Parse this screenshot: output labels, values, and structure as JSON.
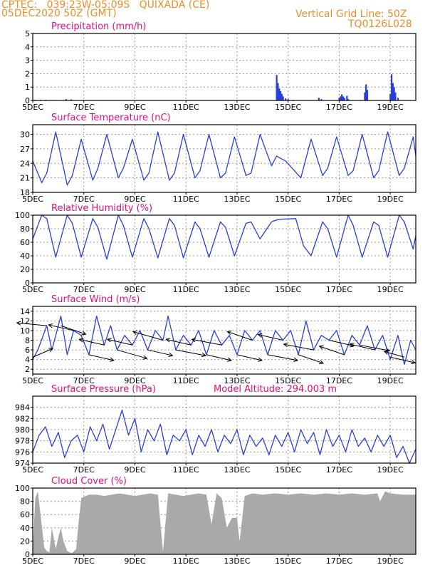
{
  "header": {
    "line1": "CPTEC:   039:23W-05:09S   QUIXADA (CE)",
    "line2": "05DEC2020 50Z (GMT)",
    "grid_note": "Vertical Grid Line: 50Z",
    "code": "TQ0126L028",
    "model_altitude": "Model Altitude: 294.003 m"
  },
  "colors": {
    "header": "#e8902a",
    "title": "#e0107a",
    "series": "#2a3fd8",
    "cloud": "#a9a9a9",
    "arrow": "#000000"
  },
  "chart_data": [
    {
      "type": "bar",
      "title": "Precipitation (mm/h)",
      "ylim": [
        0,
        5
      ],
      "yticks": [
        0,
        1,
        2,
        3,
        4,
        5
      ],
      "xlim": [
        0,
        15
      ],
      "xticks": [
        0,
        2,
        4,
        6,
        8,
        10,
        12,
        14
      ],
      "xticklabels": [
        "5DEC",
        "7DEC",
        "9DEC",
        "11DEC",
        "13DEC",
        "15DEC",
        "17DEC",
        "19DEC"
      ],
      "grid": true,
      "x": [
        0.1,
        0.3,
        0.5,
        1.3,
        1.5,
        9.55,
        9.6,
        9.65,
        9.7,
        9.75,
        9.8,
        9.9,
        10.0,
        10.2,
        11.2,
        11.3,
        12.0,
        12.05,
        12.1,
        12.15,
        12.2,
        12.3,
        12.35,
        13.0,
        13.05,
        13.1,
        14.0,
        14.05,
        14.1,
        14.15,
        14.2,
        14.3
      ],
      "values": [
        0.05,
        0.05,
        0.05,
        0.1,
        0.08,
        1.9,
        1.3,
        0.9,
        0.7,
        0.5,
        0.3,
        0.15,
        0.1,
        0.05,
        0.2,
        0.1,
        0.2,
        0.3,
        0.45,
        0.3,
        0.2,
        0.35,
        0.1,
        0.6,
        1.2,
        0.8,
        0.5,
        1.95,
        1.3,
        1.0,
        0.6,
        0.2
      ]
    },
    {
      "type": "line",
      "title": "Surface Temperature (nC)",
      "ylim": [
        18,
        32
      ],
      "yticks": [
        18,
        21,
        24,
        27,
        30
      ],
      "xlim": [
        0,
        15
      ],
      "xticks": [
        0,
        2,
        4,
        6,
        8,
        10,
        12,
        14
      ],
      "xticklabels": [
        "5DEC",
        "7DEC",
        "9DEC",
        "11DEC",
        "13DEC",
        "15DEC",
        "17DEC",
        "19DEC"
      ],
      "grid": true,
      "x": [
        0,
        0.35,
        0.55,
        0.9,
        1.35,
        1.55,
        1.9,
        2.35,
        2.55,
        2.9,
        3.35,
        3.55,
        3.9,
        4.35,
        4.55,
        4.9,
        5.35,
        5.55,
        5.9,
        6.35,
        6.55,
        6.9,
        7.35,
        7.55,
        7.9,
        8.35,
        8.55,
        8.9,
        9.35,
        9.55,
        9.9,
        10.5,
        10.9,
        11.35,
        11.55,
        11.9,
        12.35,
        12.55,
        12.9,
        13.35,
        13.55,
        13.9,
        14.35,
        14.55,
        14.9,
        15
      ],
      "values": [
        24.5,
        20,
        22,
        30.5,
        19.5,
        21.5,
        29,
        20.5,
        23,
        30,
        21,
        23,
        29,
        20.5,
        22,
        30.5,
        20.5,
        22,
        30,
        21,
        22.5,
        30,
        21,
        22,
        29.5,
        21.5,
        22,
        30,
        23.5,
        25.5,
        24.5,
        21,
        29,
        21.5,
        23,
        29.5,
        21.5,
        22.5,
        30,
        21,
        22.5,
        30.5,
        21.5,
        23,
        29.5,
        25.5
      ]
    },
    {
      "type": "line",
      "title": "Relative Humidity (%)",
      "ylim": [
        0,
        100
      ],
      "yticks": [
        0,
        20,
        40,
        60,
        80,
        100
      ],
      "xlim": [
        0,
        15
      ],
      "xticks": [
        0,
        2,
        4,
        6,
        8,
        10,
        12,
        14
      ],
      "xticklabels": [
        "5DEC",
        "7DEC",
        "9DEC",
        "11DEC",
        "13DEC",
        "15DEC",
        "17DEC",
        "19DEC"
      ],
      "grid": true,
      "x": [
        0,
        0.35,
        0.55,
        0.9,
        1.35,
        1.55,
        1.9,
        2.35,
        2.55,
        2.9,
        3.35,
        3.55,
        3.9,
        4.35,
        4.55,
        4.9,
        5.35,
        5.55,
        5.9,
        6.35,
        6.55,
        6.9,
        7.35,
        7.55,
        7.9,
        8.35,
        8.55,
        8.9,
        9.35,
        9.55,
        9.7,
        10.3,
        10.6,
        10.9,
        11.35,
        11.55,
        11.9,
        12.35,
        12.55,
        12.9,
        13.35,
        13.55,
        13.9,
        14.35,
        14.55,
        14.9,
        15
      ],
      "values": [
        65,
        100,
        95,
        38,
        100,
        88,
        38,
        95,
        82,
        35,
        100,
        85,
        38,
        95,
        80,
        37,
        95,
        85,
        37,
        90,
        80,
        38,
        90,
        82,
        40,
        88,
        90,
        65,
        90,
        93,
        94,
        95,
        55,
        40,
        90,
        80,
        38,
        100,
        85,
        38,
        90,
        85,
        38,
        100,
        90,
        50,
        70
      ]
    },
    {
      "type": "line",
      "title": "Surface Wind (m/s)",
      "ylim": [
        1,
        15
      ],
      "yticks": [
        2,
        4,
        6,
        8,
        10,
        12,
        14
      ],
      "xlim": [
        0,
        15
      ],
      "xticks": [
        0,
        2,
        4,
        6,
        8,
        10,
        12,
        14
      ],
      "xticklabels": [
        "5DEC",
        "7DEC",
        "9DEC",
        "11DEC",
        "13DEC",
        "15DEC",
        "17DEC",
        "19DEC"
      ],
      "grid": true,
      "x": [
        0,
        0.2,
        0.55,
        0.75,
        1.1,
        1.35,
        1.6,
        1.9,
        2.2,
        2.5,
        2.8,
        3.05,
        3.3,
        3.6,
        3.9,
        4.2,
        4.5,
        4.8,
        5.1,
        5.3,
        5.6,
        5.9,
        6.2,
        6.5,
        6.8,
        7.1,
        7.4,
        7.7,
        8.0,
        8.3,
        8.6,
        8.9,
        9.2,
        9.5,
        9.8,
        10.1,
        10.4,
        10.7,
        11.0,
        11.3,
        11.6,
        11.9,
        12.2,
        12.5,
        12.8,
        13.1,
        13.4,
        13.7,
        14.0,
        14.3,
        14.55,
        14.8,
        15
      ],
      "values": [
        4,
        6,
        11,
        6,
        13,
        5,
        10,
        9,
        5,
        13,
        7,
        11,
        6,
        9,
        7,
        10,
        6,
        10,
        8,
        13,
        6,
        9,
        7,
        10,
        5,
        10,
        7,
        9,
        5,
        10,
        8,
        10,
        5,
        10,
        8,
        10,
        5,
        12,
        6,
        9,
        8,
        10,
        5,
        9,
        7,
        11,
        6,
        9,
        4,
        9,
        3,
        8,
        6
      ]
    },
    {
      "type": "line",
      "title": "Surface Pressure (hPa)",
      "ylim": [
        974,
        986
      ],
      "yticks": [
        974,
        976,
        978,
        980,
        982,
        984
      ],
      "xlim": [
        0,
        15
      ],
      "xticks": [
        0,
        2,
        4,
        6,
        8,
        10,
        12,
        14
      ],
      "xticklabels": [
        "5DEC",
        "7DEC",
        "9DEC",
        "11DEC",
        "13DEC",
        "15DEC",
        "17DEC",
        "19DEC"
      ],
      "grid": true,
      "x": [
        0,
        0.25,
        0.5,
        0.75,
        1.0,
        1.25,
        1.5,
        1.75,
        2.0,
        2.25,
        2.5,
        2.75,
        3.0,
        3.25,
        3.5,
        3.75,
        4.0,
        4.25,
        4.5,
        4.75,
        5.0,
        5.25,
        5.5,
        5.75,
        6.0,
        6.25,
        6.5,
        6.75,
        7.0,
        7.25,
        7.5,
        7.75,
        8.0,
        8.25,
        8.5,
        8.75,
        9.0,
        9.25,
        9.5,
        9.75,
        10.0,
        10.25,
        10.5,
        10.75,
        11.0,
        11.25,
        11.5,
        11.75,
        12.0,
        12.25,
        12.5,
        12.75,
        13.0,
        13.25,
        13.5,
        13.75,
        14.0,
        14.25,
        14.5,
        14.75,
        15
      ],
      "values": [
        976,
        979,
        980.5,
        977,
        979.5,
        975,
        978,
        979,
        976,
        980.5,
        978,
        981,
        976.5,
        980,
        983.5,
        979,
        982,
        976,
        980,
        978,
        981,
        975.5,
        979,
        978,
        980,
        975.5,
        979,
        977,
        980,
        976,
        979,
        977.5,
        980,
        975.5,
        979,
        977,
        978.5,
        975.5,
        979,
        977,
        979.5,
        976,
        980,
        977.5,
        979.5,
        975.5,
        980,
        977,
        979,
        976,
        980,
        977,
        978.5,
        976,
        979,
        977,
        979,
        975,
        977,
        974,
        976.5
      ]
    },
    {
      "type": "area",
      "title": "Cloud Cover (%)",
      "ylim": [
        0,
        100
      ],
      "yticks": [
        0,
        20,
        40,
        60,
        80,
        100
      ],
      "xlim": [
        0,
        15
      ],
      "xticks": [
        0,
        2,
        4,
        6,
        8,
        10,
        12,
        14
      ],
      "xticklabels": [
        "5DEC",
        "7DEC",
        "9DEC",
        "11DEC",
        "13DEC",
        "15DEC",
        "17DEC",
        "19DEC"
      ],
      "grid": true,
      "x": [
        0,
        0.1,
        0.2,
        0.35,
        0.45,
        0.55,
        0.65,
        0.75,
        0.9,
        1.0,
        1.1,
        1.2,
        1.35,
        1.45,
        1.55,
        1.7,
        1.8,
        1.9,
        2.2,
        2.5,
        2.8,
        3.1,
        3.4,
        3.7,
        4.0,
        4.3,
        4.6,
        4.9,
        5.1,
        5.3,
        5.6,
        5.9,
        6.2,
        6.5,
        6.8,
        7.0,
        7.2,
        7.4,
        7.6,
        7.8,
        8.0,
        8.1,
        8.3,
        8.6,
        9.0,
        9.5,
        10.0,
        10.5,
        11.0,
        11.5,
        12.0,
        12.5,
        13.0,
        13.5,
        13.6,
        13.8,
        14.0,
        14.5,
        15
      ],
      "values": [
        5,
        85,
        95,
        45,
        10,
        5,
        3,
        40,
        8,
        25,
        40,
        20,
        5,
        3,
        2,
        8,
        50,
        85,
        90,
        90,
        88,
        90,
        92,
        90,
        88,
        90,
        92,
        90,
        4,
        92,
        90,
        88,
        90,
        92,
        90,
        45,
        92,
        85,
        40,
        55,
        55,
        20,
        88,
        92,
        90,
        92,
        90,
        92,
        90,
        92,
        90,
        92,
        90,
        92,
        80,
        95,
        92,
        90,
        90
      ]
    }
  ],
  "wind_vectors": {
    "x": [
      0.0,
      0.55,
      1.1,
      1.6,
      2.2,
      2.8,
      3.3,
      3.9,
      4.5,
      5.1,
      5.6,
      6.2,
      6.8,
      7.4,
      8.0,
      8.6,
      9.2,
      9.8,
      10.4,
      11.0,
      11.6,
      12.2,
      12.8,
      13.4,
      14.0,
      14.55
    ],
    "u": [
      4,
      -6,
      5,
      -5,
      5,
      -5,
      6,
      -5,
      5,
      -6,
      6,
      -5,
      5,
      -6,
      5,
      -5,
      6,
      -5,
      5,
      -6,
      5,
      -5,
      6,
      -5,
      5,
      -4
    ],
    "v": [
      3,
      1,
      -3,
      2,
      -2,
      2,
      -3,
      2,
      -2,
      3,
      -2,
      2,
      -2,
      2,
      -2,
      3,
      -2,
      2,
      -3,
      2,
      -2,
      3,
      -2,
      2,
      -2,
      2
    ]
  }
}
